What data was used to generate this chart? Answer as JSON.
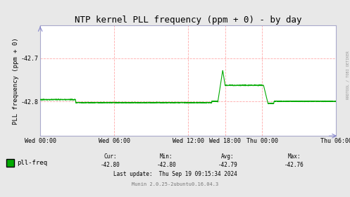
{
  "title": "NTP kernel PLL frequency (ppm + 0) - by day",
  "ylabel": "PLL frequency (ppm + 0)",
  "background_color": "#e8e8e8",
  "plot_bg_color": "#ffffff",
  "line_color": "#00aa00",
  "line_width": 0.8,
  "ylim": [
    -42.88,
    -42.625
  ],
  "yticks": [
    -42.7,
    -42.8
  ],
  "xlim": [
    0.0,
    1.0
  ],
  "xtick_positions": [
    0.0,
    0.25,
    0.5,
    0.625,
    0.75,
    1.0
  ],
  "xtick_labels": [
    "Wed 00:00",
    "Wed 06:00",
    "Wed 12:00",
    "Wed 18:00",
    "Thu 00:00",
    "Thu 06:00"
  ],
  "legend_label": "pll-freq",
  "cur": "-42.80",
  "min_val": "-42.80",
  "avg_val": "-42.79",
  "max_val": "-42.76",
  "last_update": "Thu Sep 19 09:15:34 2024",
  "munin_text": "Munin 2.0.25-2ubuntu0.16.04.3",
  "rrdtool_text": "RRDTOOL / TOBI OETIKER",
  "title_fontsize": 9,
  "axis_label_fontsize": 6.5,
  "tick_fontsize": 6,
  "legend_fontsize": 6.5,
  "footer_fontsize": 5.5
}
